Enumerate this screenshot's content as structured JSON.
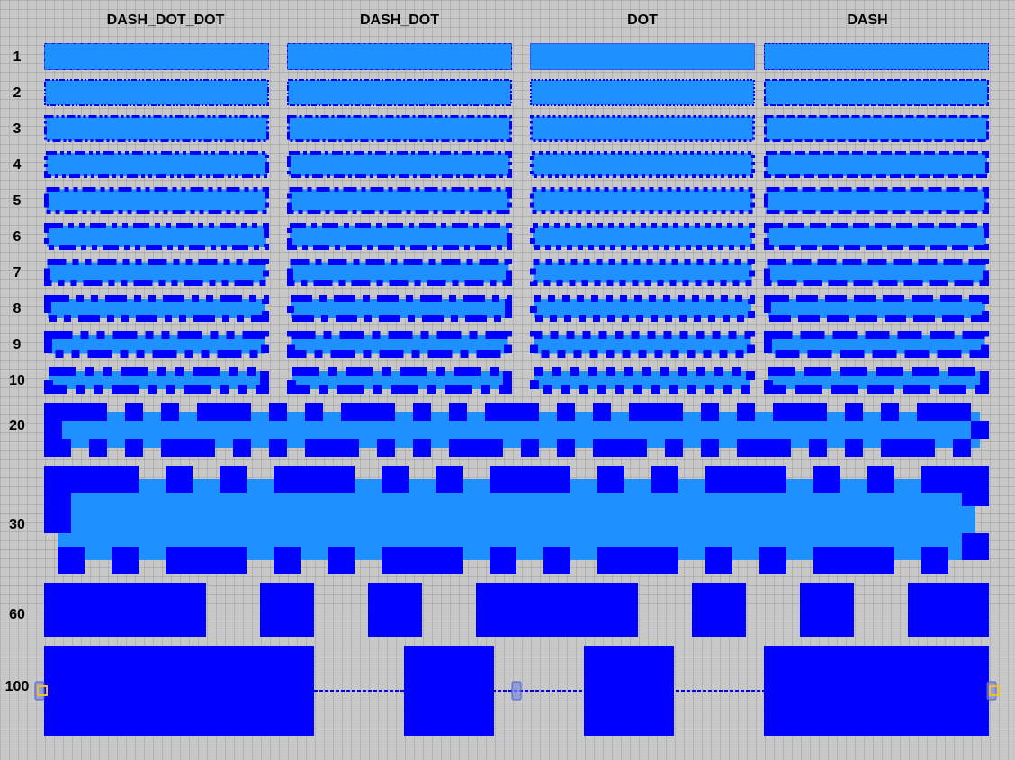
{
  "column_headers": [
    "DASH_DOT_DOT",
    "DASH_DOT",
    "DOT",
    "DASH"
  ],
  "row_labels": [
    "1",
    "2",
    "3",
    "4",
    "5",
    "6",
    "7",
    "8",
    "9",
    "10",
    "20",
    "30",
    "60",
    "100"
  ],
  "colors": {
    "fill": "#1e90ff",
    "stroke": "#0000ff",
    "grid_background": "#c8c8c8",
    "handle": "#f0c020"
  },
  "line_style_demo": {
    "dash_styles": [
      "dash_dot_dot",
      "dash_dot",
      "dot",
      "dash"
    ],
    "stroke_widths": [
      1,
      2,
      3,
      4,
      5,
      6,
      7,
      8,
      9,
      10,
      20,
      30,
      60,
      100
    ]
  }
}
